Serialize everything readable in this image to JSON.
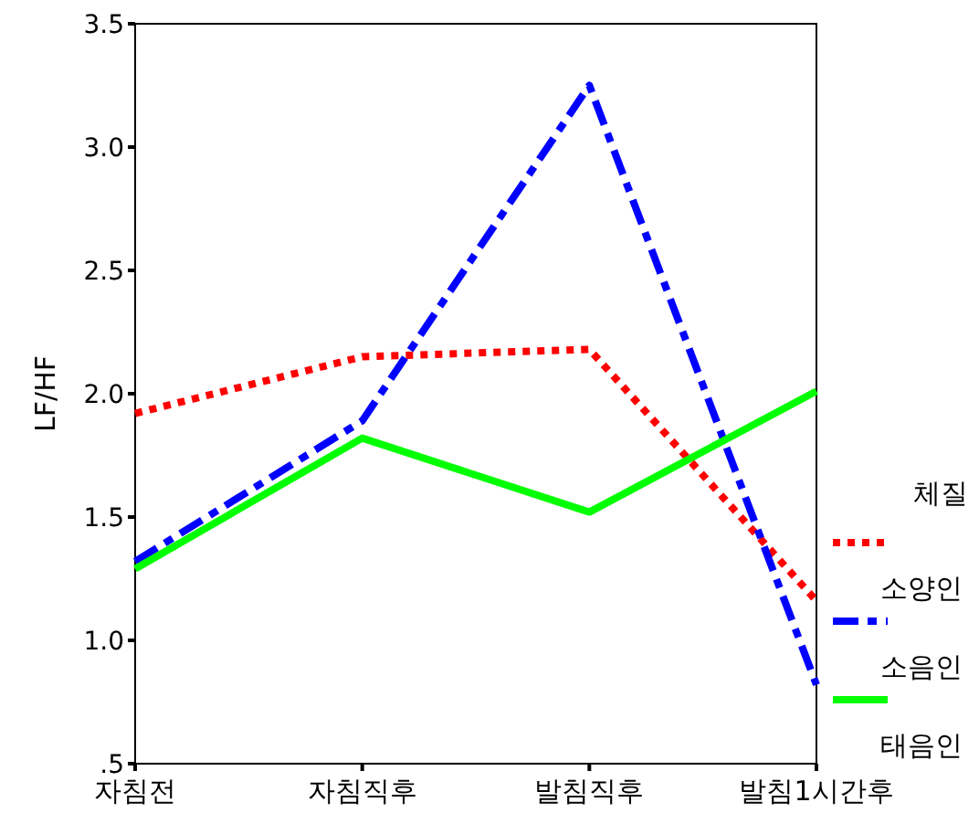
{
  "chart_data": {
    "type": "line",
    "ylabel": "LF/HF",
    "legend_title": "체질",
    "legend": "right",
    "categories": [
      "자침전",
      "자침직후",
      "발침직후",
      "발침1시간후"
    ],
    "ylim": [
      0.5,
      3.5
    ],
    "yticks": [
      {
        "value": 0.5,
        "label": ".5"
      },
      {
        "value": 1,
        "label": "1.0"
      },
      {
        "value": 1.5,
        "label": "1.5"
      },
      {
        "value": 2,
        "label": "2.0"
      },
      {
        "value": 2.5,
        "label": "2.5"
      },
      {
        "value": 3,
        "label": "3.0"
      },
      {
        "value": 3.5,
        "label": "3.5"
      }
    ],
    "grid": false,
    "marker": "none",
    "series": [
      {
        "name": "소양인",
        "color": "#ff0000",
        "line_style": "dotted",
        "values": [
          1.92,
          2.15,
          2.18,
          1.16
        ]
      },
      {
        "name": "소음인",
        "color": "#0000ff",
        "line_style": "dashdot",
        "values": [
          1.32,
          1.89,
          3.25,
          0.82
        ]
      },
      {
        "name": "태음인",
        "color": "#00ff00",
        "line_style": "solid",
        "values": [
          1.29,
          1.82,
          1.52,
          2.01
        ]
      }
    ]
  }
}
